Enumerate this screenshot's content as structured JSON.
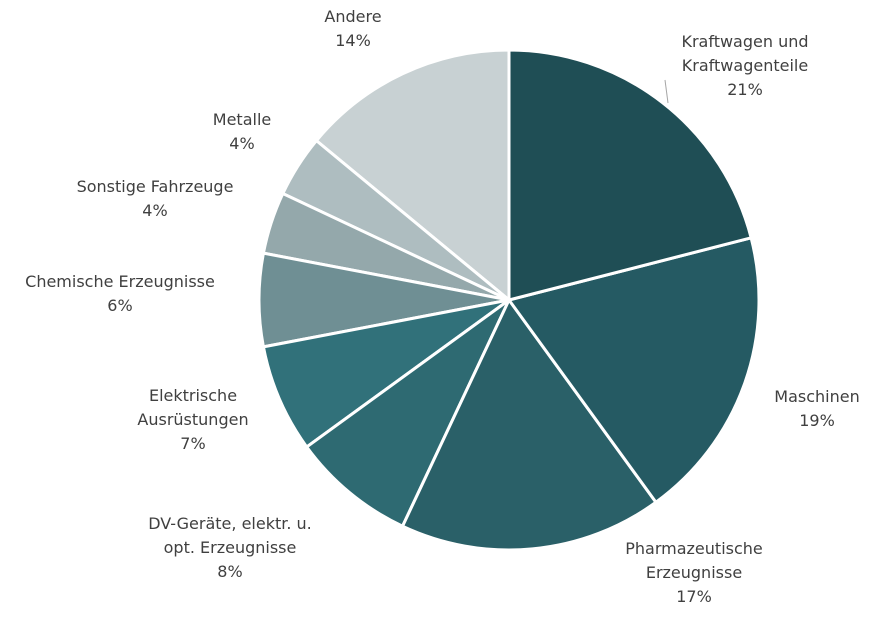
{
  "chart_data": {
    "type": "pie",
    "categories": [
      "Kraftwagen und Kraftwagenteile",
      "Maschinen",
      "Pharmazeutische Erzeugnisse",
      "DV-Geräte, elektr. u. opt. Erzeugnisse",
      "Elektrische Ausrüstungen",
      "Chemische Erzeugnisse",
      "Sonstige Fahrzeuge",
      "Metalle",
      "Andere"
    ],
    "values": [
      21,
      19,
      17,
      8,
      7,
      6,
      4,
      4,
      14
    ],
    "value_labels": [
      "21%",
      "19%",
      "17%",
      "8%",
      "7%",
      "6%",
      "4%",
      "4%",
      "14%"
    ],
    "colors": [
      "#1f4e55",
      "#255a63",
      "#2a6068",
      "#2e6a72",
      "#31717a",
      "#6f8f94",
      "#94a8ab",
      "#aebdc0",
      "#c8d1d3"
    ]
  }
}
